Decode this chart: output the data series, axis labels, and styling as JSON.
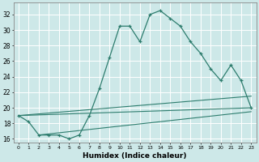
{
  "xlabel": "Humidex (Indice chaleur)",
  "background_color": "#cde8e8",
  "grid_color": "#b0d0d0",
  "line_color": "#2e7d6e",
  "xlim": [
    -0.5,
    23.5
  ],
  "ylim": [
    15.5,
    33.5
  ],
  "xticks": [
    0,
    1,
    2,
    3,
    4,
    5,
    6,
    7,
    8,
    9,
    10,
    11,
    12,
    13,
    14,
    15,
    16,
    17,
    18,
    19,
    20,
    21,
    22,
    23
  ],
  "yticks": [
    16,
    18,
    20,
    22,
    24,
    26,
    28,
    30,
    32
  ],
  "series": [
    [
      0,
      19.0
    ],
    [
      1,
      18.2
    ],
    [
      2,
      16.5
    ],
    [
      3,
      16.5
    ],
    [
      4,
      16.5
    ],
    [
      5,
      16.0
    ],
    [
      6,
      16.5
    ],
    [
      7,
      19.0
    ],
    [
      8,
      22.5
    ],
    [
      9,
      26.5
    ],
    [
      10,
      30.5
    ],
    [
      11,
      30.5
    ],
    [
      12,
      28.5
    ],
    [
      13,
      32.0
    ],
    [
      14,
      32.5
    ],
    [
      15,
      31.5
    ],
    [
      16,
      30.5
    ],
    [
      17,
      28.5
    ],
    [
      18,
      27.0
    ],
    [
      19,
      25.0
    ],
    [
      20,
      23.5
    ],
    [
      21,
      25.5
    ],
    [
      22,
      23.5
    ],
    [
      23,
      20.0
    ]
  ],
  "line2": [
    [
      0,
      19.0
    ],
    [
      23,
      20.0
    ]
  ],
  "line3": [
    [
      0,
      19.0
    ],
    [
      23,
      21.5
    ]
  ],
  "line4": [
    [
      2,
      16.5
    ],
    [
      23,
      19.5
    ]
  ]
}
